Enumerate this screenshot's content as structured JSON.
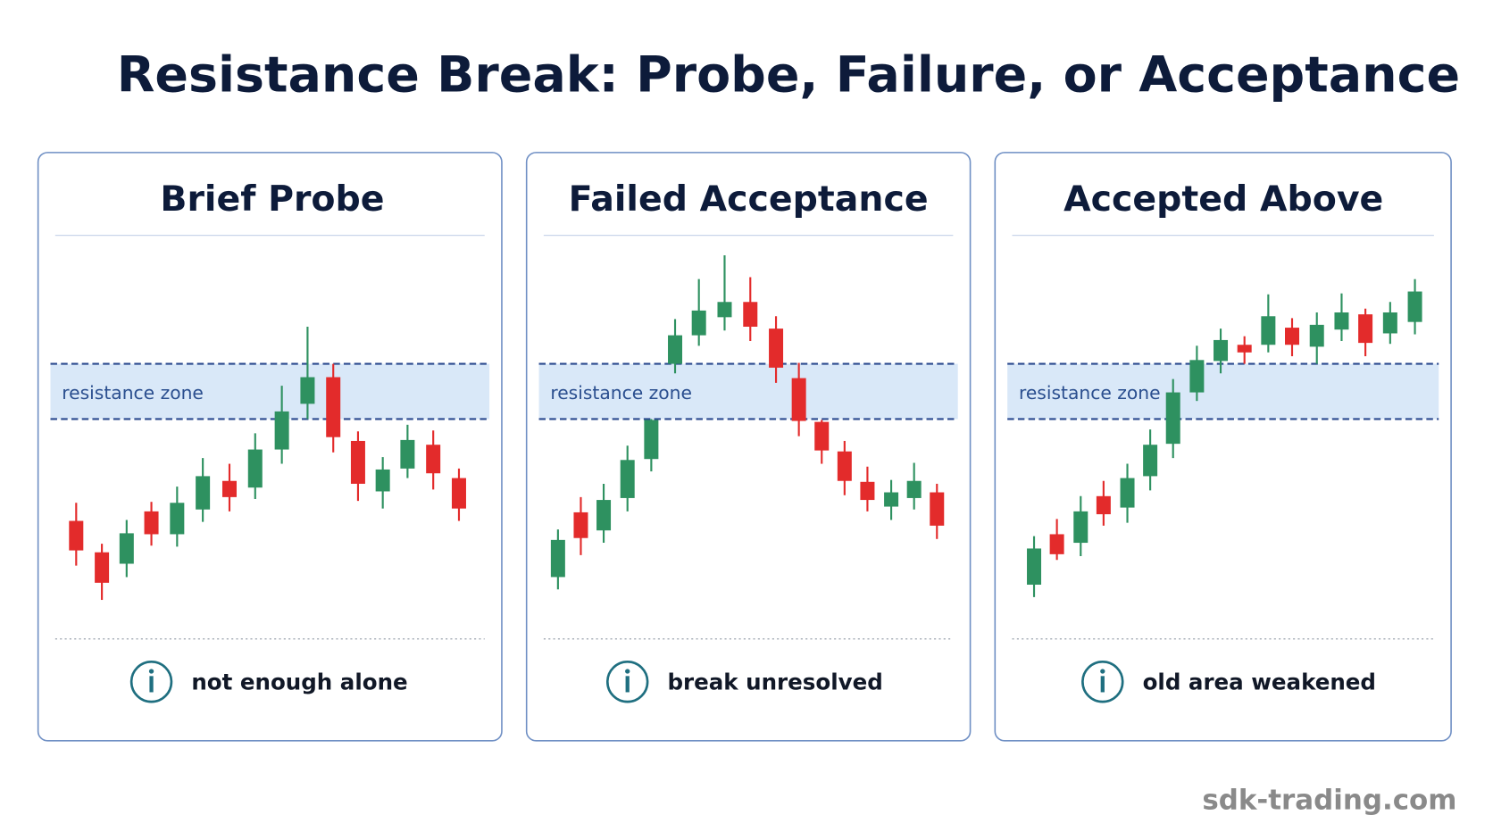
{
  "title": "Resistance Break: Probe, Failure, or Acceptance",
  "panels": [
    {
      "title": "Brief Probe",
      "zone_label": "resistance zone",
      "note": "not enough alone"
    },
    {
      "title": "Failed Acceptance",
      "zone_label": "resistance zone",
      "note": "break unresolved"
    },
    {
      "title": "Accepted Above",
      "zone_label": "resistance zone",
      "note": "old area weakened"
    }
  ],
  "watermark": "sdk-trading.com"
}
